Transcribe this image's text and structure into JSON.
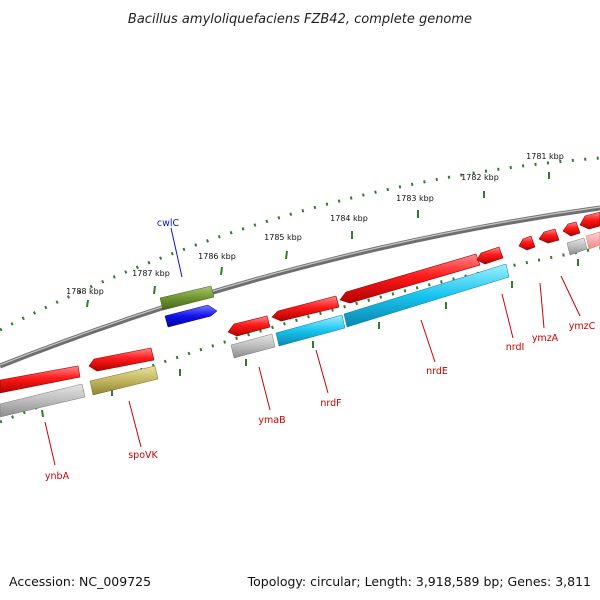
{
  "title": "Bacillus amyloliquefaciens FZB42, complete genome",
  "footer": {
    "accession": "Accession: NC_009725",
    "summary": "Topology: circular; Length: 3,918,589 bp; Genes: 3,811"
  },
  "colors": {
    "backbone": "#8a8a8a",
    "tick_green": "#2e7d2e",
    "forward_gene": "#ee1111",
    "label_red": "#cc0000",
    "label_blue": "#1010cc"
  },
  "kbp_markers": [
    "1788 kbp",
    "1787 kbp",
    "1786 kbp",
    "1785 kbp",
    "1784 kbp",
    "1783 kbp",
    "1782 kbp",
    "1781 kbp"
  ],
  "gene_labels": [
    {
      "id": "cwlC",
      "text": "cwlC",
      "color": "#1010cc"
    },
    {
      "id": "ynbA",
      "text": "ynbA",
      "color": "#cc0000"
    },
    {
      "id": "spoVK",
      "text": "spoVK",
      "color": "#cc0000"
    },
    {
      "id": "ymaB",
      "text": "ymaB",
      "color": "#cc0000"
    },
    {
      "id": "nrdF",
      "text": "nrdF",
      "color": "#cc0000"
    },
    {
      "id": "nrdE",
      "text": "nrdE",
      "color": "#cc0000"
    },
    {
      "id": "nrdI",
      "text": "nrdI",
      "color": "#cc0000"
    },
    {
      "id": "ymzA",
      "text": "ymzA",
      "color": "#cc0000"
    },
    {
      "id": "ymzC",
      "text": "ymzC",
      "color": "#cc0000"
    }
  ]
}
